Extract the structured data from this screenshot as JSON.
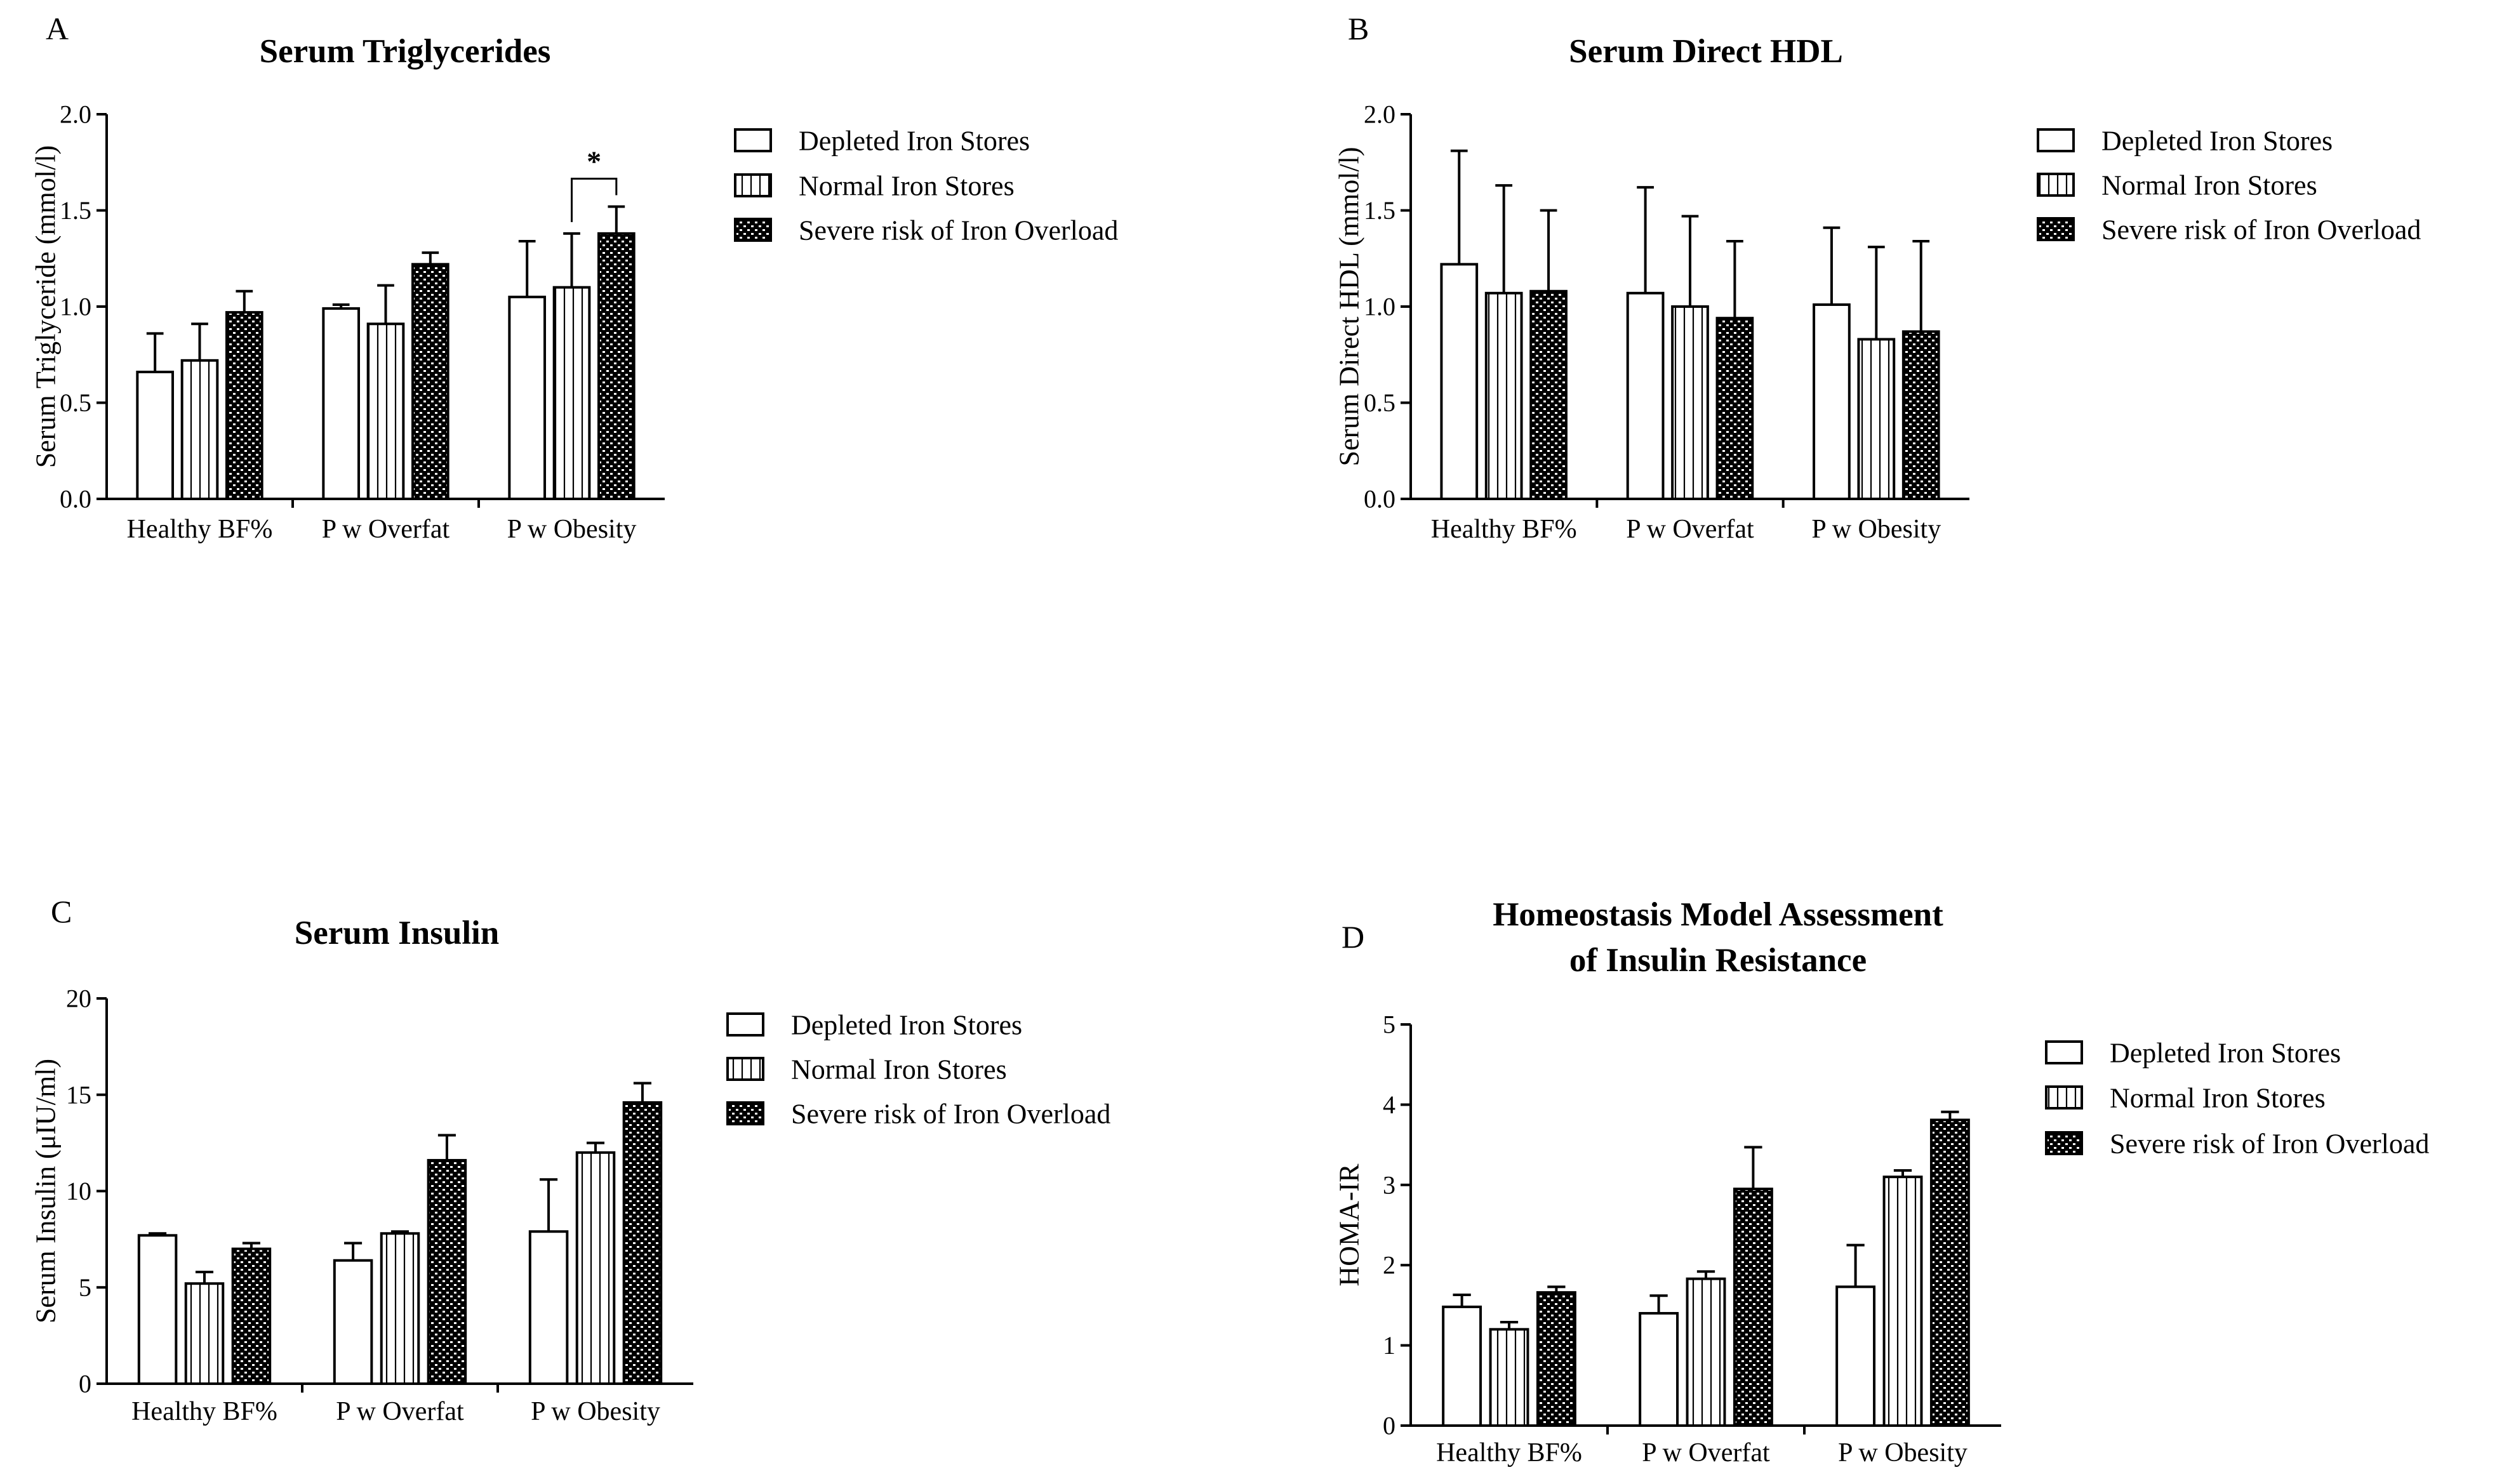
{
  "legend_patterns": [
    "open",
    "vertical-lines",
    "checkered"
  ],
  "colors": {
    "bar_fill": "#ffffff",
    "stroke": "#000000",
    "pattern_dark": "#000000"
  },
  "chart_data": [
    {
      "panel": "A",
      "type": "bar",
      "title": [
        "Serum Triglycerides"
      ],
      "ylabel": "Serum Triglyceride (mmol/l)",
      "xlabel": "",
      "ylim": [
        0,
        2.0
      ],
      "yticks": [
        0,
        0.5,
        1.0,
        1.5,
        2.0
      ],
      "ytick_labels": [
        "0.0",
        "0.5",
        "1.0",
        "1.5",
        "2.0"
      ],
      "categories": [
        "Healthy BF%",
        "P w Overfat",
        "P w Obesity"
      ],
      "series": [
        {
          "name": "Depleted Iron Stores",
          "values": [
            0.66,
            0.99,
            1.05
          ],
          "errors": [
            0.2,
            0.02,
            0.29
          ]
        },
        {
          "name": "Normal Iron Stores",
          "values": [
            0.72,
            0.91,
            1.1
          ],
          "errors": [
            0.19,
            0.2,
            0.28
          ]
        },
        {
          "name": "Severe risk of Iron Overload",
          "values": [
            0.97,
            1.22,
            1.38
          ],
          "errors": [
            0.11,
            0.06,
            0.14
          ]
        }
      ],
      "significance": [
        {
          "category": 2,
          "from_series": 1,
          "to_series": 2,
          "label": "*"
        }
      ],
      "legend_position": "right"
    },
    {
      "panel": "B",
      "type": "bar",
      "title": [
        "Serum Direct HDL"
      ],
      "ylabel": "Serum Direct HDL (mmol/l)",
      "xlabel": "",
      "ylim": [
        0,
        2.0
      ],
      "yticks": [
        0,
        0.5,
        1.0,
        1.5,
        2.0
      ],
      "ytick_labels": [
        "0.0",
        "0.5",
        "1.0",
        "1.5",
        "2.0"
      ],
      "categories": [
        "Healthy BF%",
        "P w Overfat",
        "P w Obesity"
      ],
      "series": [
        {
          "name": "Depleted Iron Stores",
          "values": [
            1.22,
            1.07,
            1.01
          ],
          "errors": [
            0.59,
            0.55,
            0.4
          ]
        },
        {
          "name": "Normal Iron Stores",
          "values": [
            1.07,
            1.0,
            0.83
          ],
          "errors": [
            0.56,
            0.47,
            0.48
          ]
        },
        {
          "name": "Severe risk of Iron Overload",
          "values": [
            1.08,
            0.94,
            0.87
          ],
          "errors": [
            0.42,
            0.4,
            0.47
          ]
        }
      ],
      "significance": [],
      "legend_position": "right"
    },
    {
      "panel": "C",
      "type": "bar",
      "title": [
        "Serum Insulin"
      ],
      "ylabel": "Serum Insulin (μIU/ml)",
      "xlabel": "",
      "ylim": [
        0,
        20
      ],
      "yticks": [
        0,
        5,
        10,
        15,
        20
      ],
      "ytick_labels": [
        "0",
        "5",
        "10",
        "15",
        "20"
      ],
      "categories": [
        "Healthy BF%",
        "P w Overfat",
        "P w Obesity"
      ],
      "series": [
        {
          "name": "Depleted Iron Stores",
          "values": [
            7.7,
            6.4,
            7.9
          ],
          "errors": [
            0.1,
            0.9,
            2.7
          ]
        },
        {
          "name": "Normal Iron Stores",
          "values": [
            5.2,
            7.8,
            12.0
          ],
          "errors": [
            0.6,
            0.1,
            0.5
          ]
        },
        {
          "name": "Severe risk of Iron Overload",
          "values": [
            7.0,
            11.6,
            14.6
          ],
          "errors": [
            0.3,
            1.3,
            1.0
          ]
        }
      ],
      "significance": [],
      "legend_position": "right"
    },
    {
      "panel": "D",
      "type": "bar",
      "title": [
        "Homeostasis Model Assessment",
        "of Insulin Resistance"
      ],
      "ylabel": "HOMA-IR",
      "xlabel": "",
      "ylim": [
        0,
        5
      ],
      "yticks": [
        0,
        1,
        2,
        3,
        4,
        5
      ],
      "ytick_labels": [
        "0",
        "1",
        "2",
        "3",
        "4",
        "5"
      ],
      "categories": [
        "Healthy BF%",
        "P w Overfat",
        "P w Obesity"
      ],
      "series": [
        {
          "name": "Depleted Iron Stores",
          "values": [
            1.48,
            1.4,
            1.73
          ],
          "errors": [
            0.15,
            0.22,
            0.52
          ]
        },
        {
          "name": "Normal Iron Stores",
          "values": [
            1.2,
            1.83,
            3.1
          ],
          "errors": [
            0.09,
            0.09,
            0.08
          ]
        },
        {
          "name": "Severe risk of Iron Overload",
          "values": [
            1.66,
            2.95,
            3.81
          ],
          "errors": [
            0.07,
            0.52,
            0.1
          ]
        }
      ],
      "significance": [],
      "legend_position": "right"
    }
  ]
}
